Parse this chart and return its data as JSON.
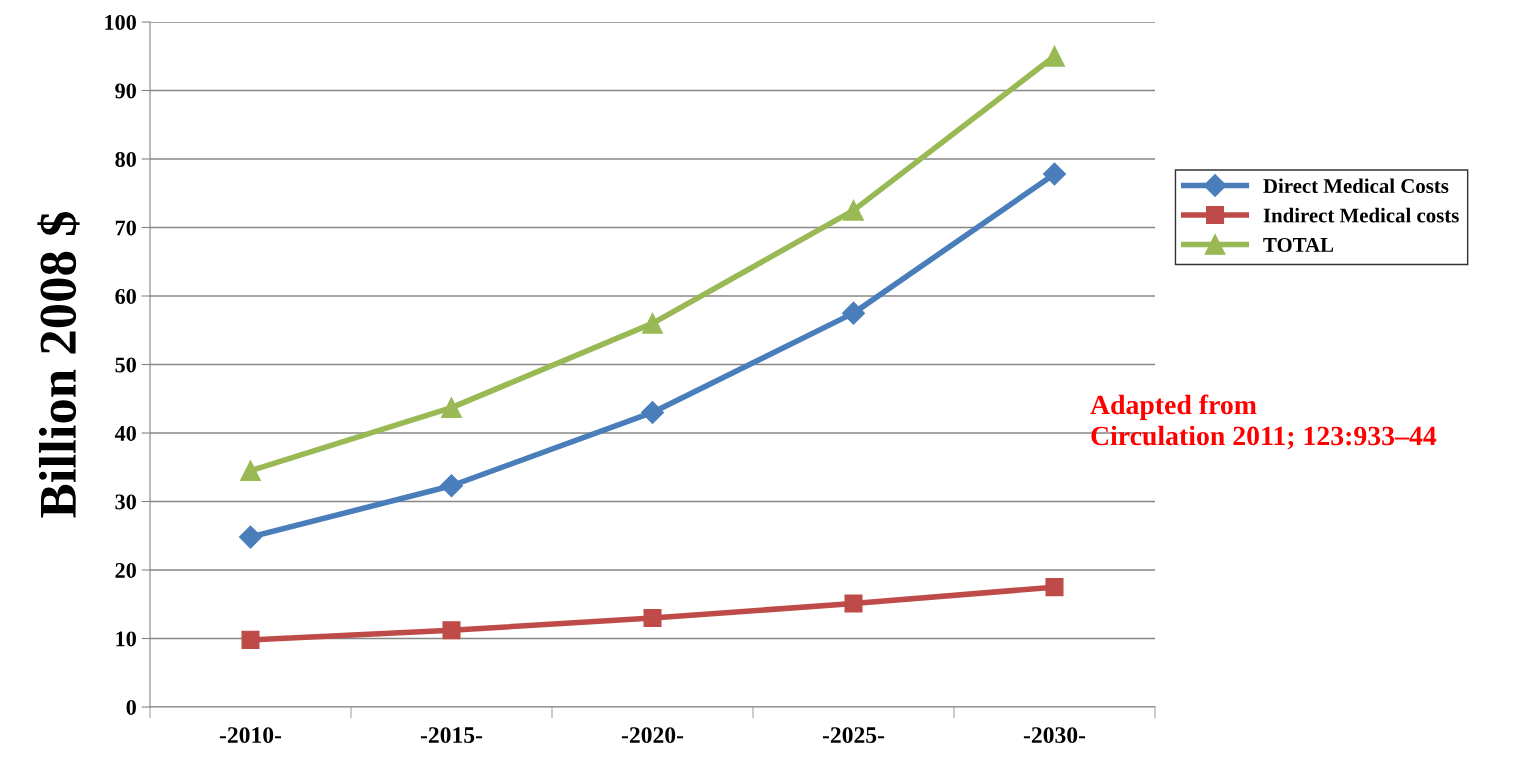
{
  "chart_data": {
    "type": "line",
    "ylabel": "Billion 2008 $",
    "categories": [
      "-2010-",
      "-2015-",
      "-2020-",
      "-2025-",
      "-2030-"
    ],
    "series": [
      {
        "name": "Direct Medical Costs",
        "color": "#4a7ebb",
        "marker": "diamond",
        "values": [
          24.8,
          32.3,
          43,
          57.5,
          77.8
        ]
      },
      {
        "name": "Indirect Medical costs",
        "color": "#be4b48",
        "marker": "square",
        "values": [
          9.8,
          11.2,
          13,
          15.1,
          17.5
        ]
      },
      {
        "name": "TOTAL",
        "color": "#98b954",
        "marker": "triangle",
        "values": [
          34.5,
          43.7,
          56,
          72.5,
          95
        ]
      }
    ],
    "ylim": [
      0,
      100
    ],
    "yticks": [
      0,
      10,
      20,
      30,
      40,
      50,
      60,
      70,
      80,
      90,
      100
    ],
    "grid": "y",
    "legend": "right",
    "line_style": "solid",
    "annotations": [
      "Adapted from\nCirculation 2011; 123:933–44"
    ]
  }
}
